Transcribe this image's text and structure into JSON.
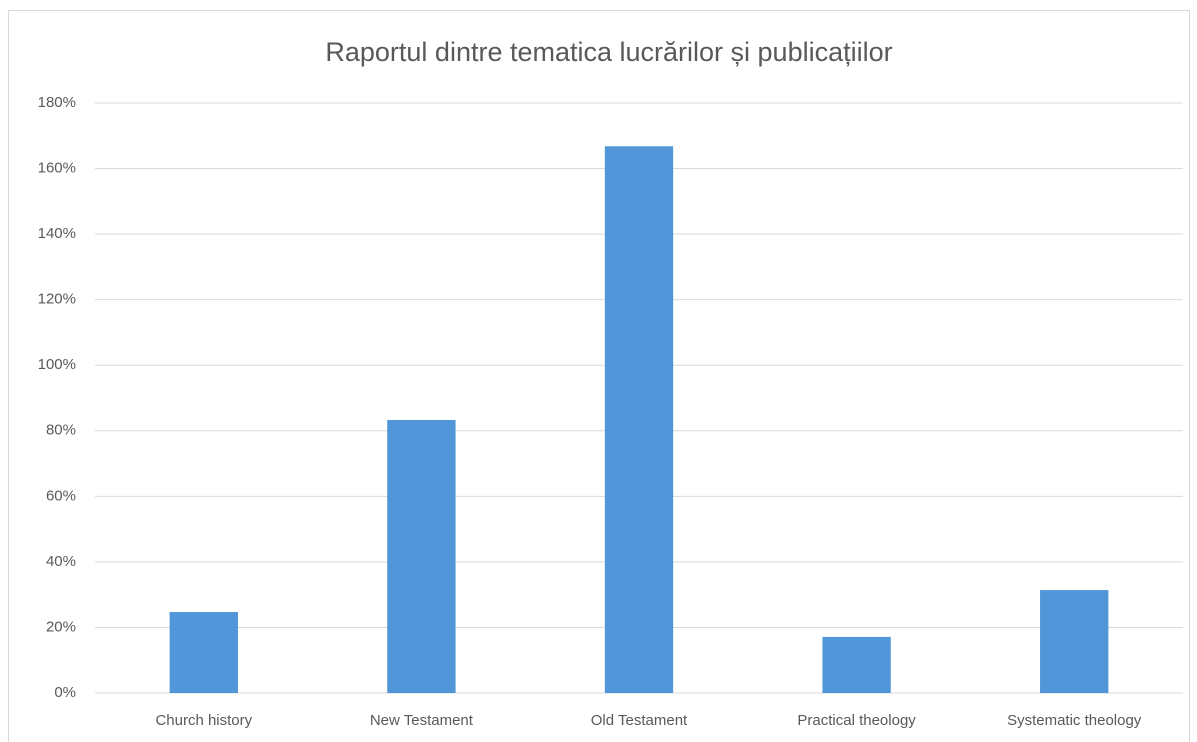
{
  "chart_data": {
    "type": "bar",
    "title": "Raportul dintre tematica lucrărilor și publicațiilor",
    "categories": [
      "Church history",
      "New Testament",
      "Old Testament",
      "Practical theology",
      "Systematic theology"
    ],
    "values": [
      24.7,
      83.3,
      166.8,
      17.1,
      31.4
    ],
    "color": "#5096d9",
    "ylim": [
      0,
      180
    ],
    "yticks": [
      {
        "value": 0,
        "label": "0%"
      },
      {
        "value": 20,
        "label": "20%"
      },
      {
        "value": 40,
        "label": "40%"
      },
      {
        "value": 60,
        "label": "60%"
      },
      {
        "value": 80,
        "label": "80%"
      },
      {
        "value": 100,
        "label": "100%"
      },
      {
        "value": 120,
        "label": "120%"
      },
      {
        "value": 140,
        "label": "140%"
      },
      {
        "value": 160,
        "label": "160%"
      },
      {
        "value": 180,
        "label": "180%"
      }
    ],
    "grid": true
  }
}
